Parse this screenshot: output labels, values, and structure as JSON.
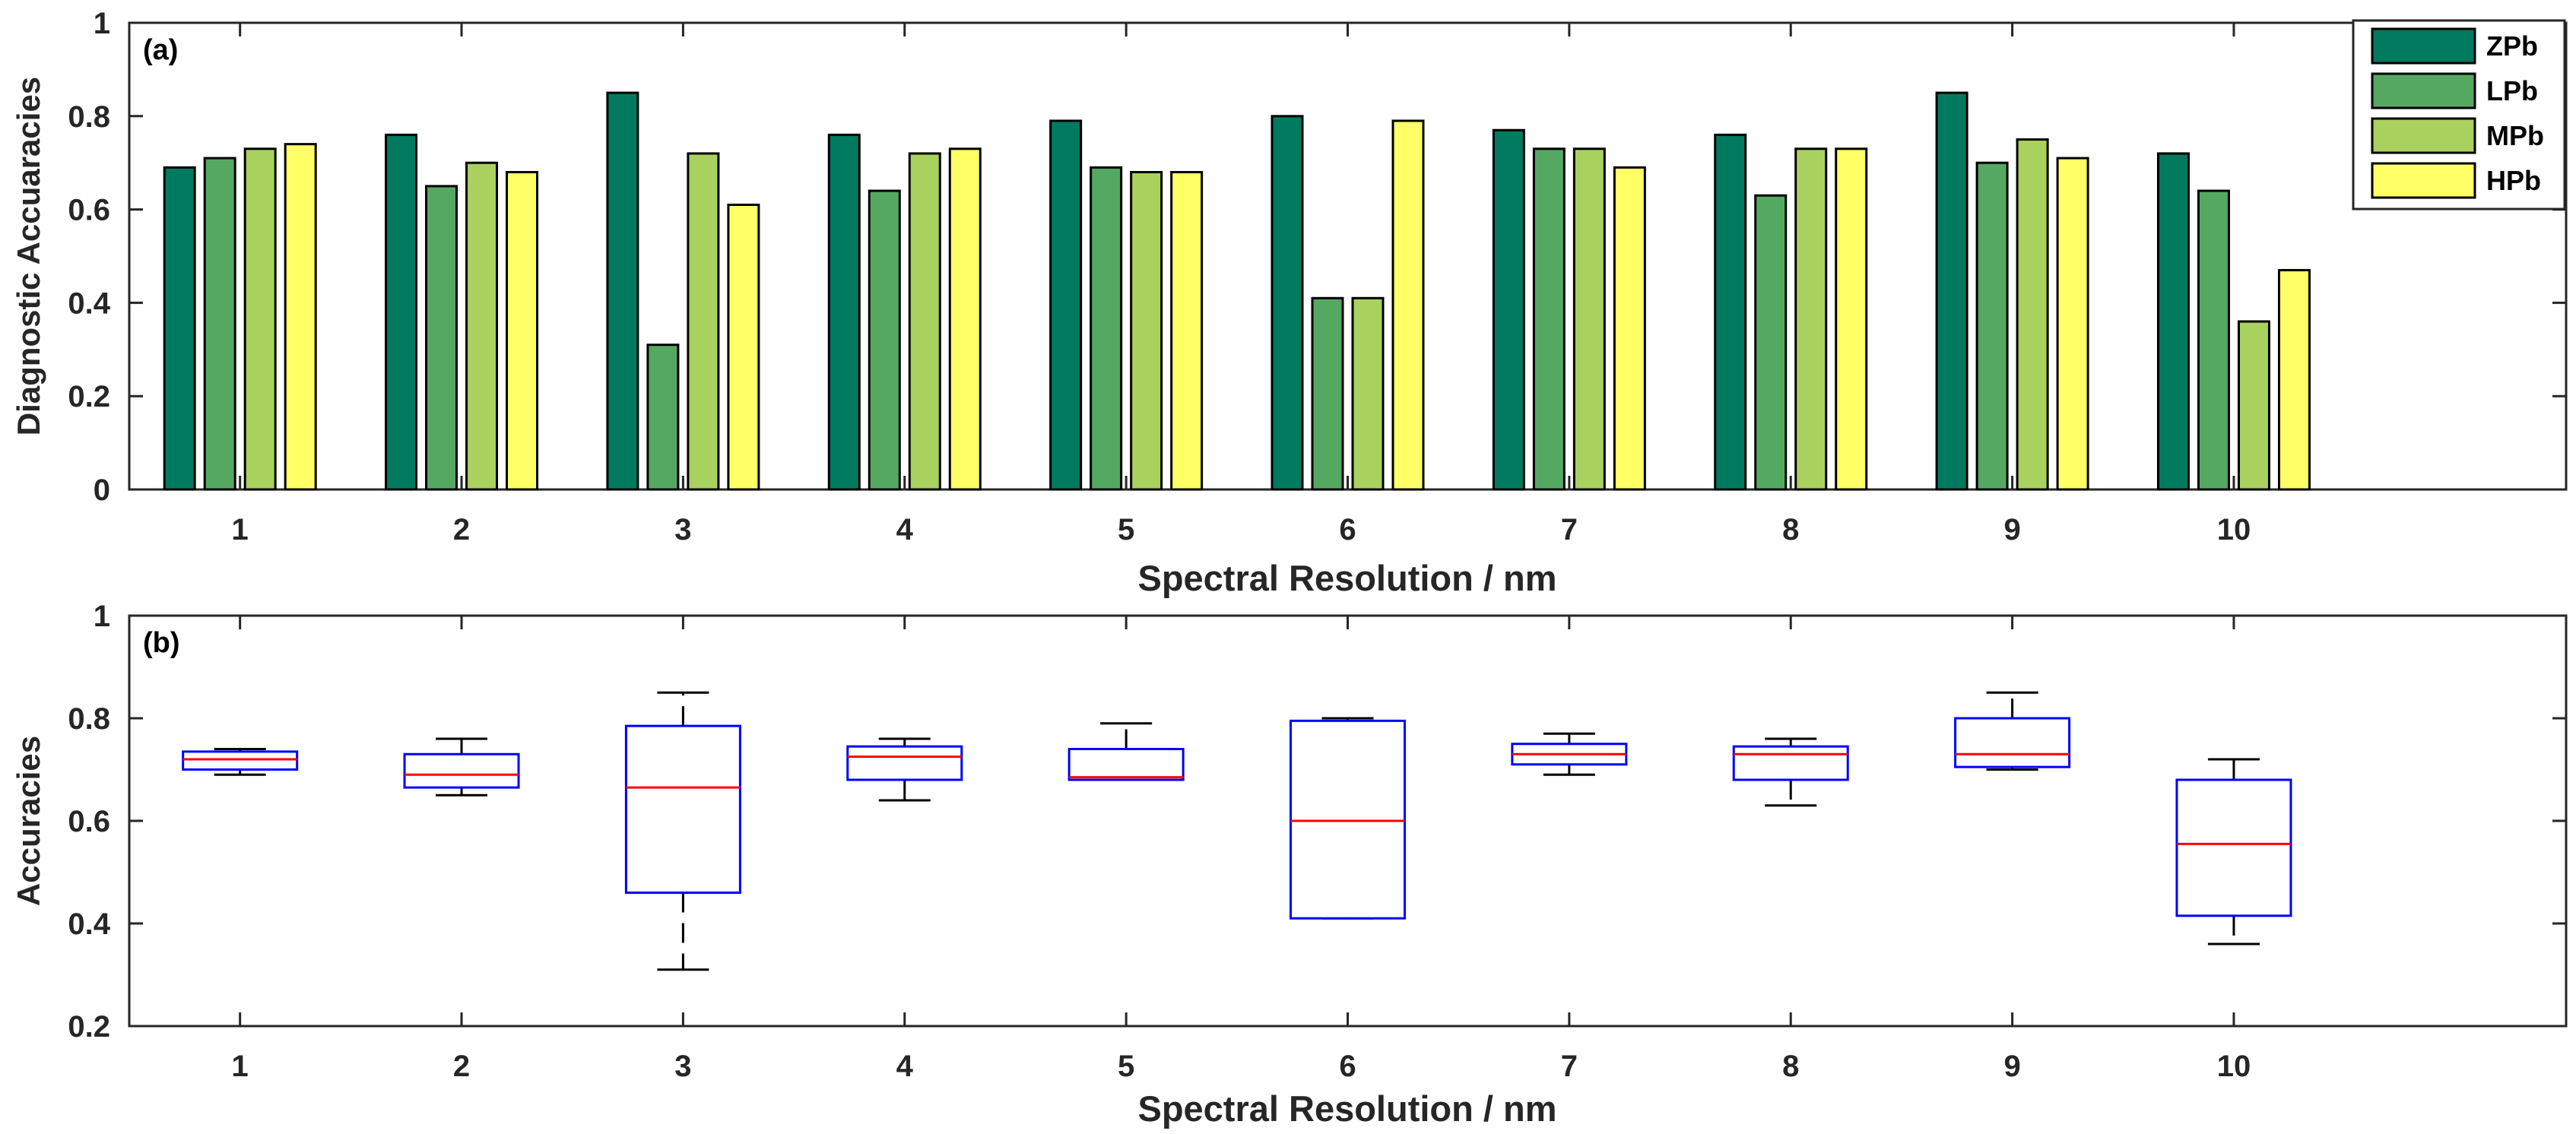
{
  "chart_data": [
    {
      "type": "bar",
      "panel_label": "(a)",
      "categories": [
        "1",
        "2",
        "3",
        "4",
        "5",
        "6",
        "7",
        "8",
        "9",
        "10"
      ],
      "series": [
        {
          "name": "ZPb",
          "color": "#007a5e",
          "values": [
            0.69,
            0.76,
            0.85,
            0.76,
            0.79,
            0.8,
            0.77,
            0.76,
            0.85,
            0.72
          ]
        },
        {
          "name": "LPb",
          "color": "#55a862",
          "values": [
            0.71,
            0.65,
            0.31,
            0.64,
            0.69,
            0.41,
            0.73,
            0.63,
            0.7,
            0.64
          ]
        },
        {
          "name": "MPb",
          "color": "#a9d15e",
          "values": [
            0.73,
            0.7,
            0.72,
            0.72,
            0.68,
            0.41,
            0.73,
            0.73,
            0.75,
            0.36
          ]
        },
        {
          "name": "HPb",
          "color": "#ffff66",
          "values": [
            0.74,
            0.68,
            0.61,
            0.73,
            0.68,
            0.79,
            0.69,
            0.73,
            0.71,
            0.47
          ]
        }
      ],
      "xlabel": "Spectral Resolution / nm",
      "ylabel": "Diagnostic Accuaracies",
      "ylim": [
        0,
        1
      ],
      "yticks": [
        "0",
        "0.2",
        "0.4",
        "0.6",
        "0.8",
        "1"
      ],
      "xlim": [
        0.5,
        11.5
      ],
      "legend_position": "top-right"
    },
    {
      "type": "box",
      "panel_label": "(b)",
      "categories": [
        "1",
        "2",
        "3",
        "4",
        "5",
        "6",
        "7",
        "8",
        "9",
        "10"
      ],
      "boxes": [
        {
          "min": 0.69,
          "q1": 0.7,
          "median": 0.72,
          "q3": 0.735,
          "max": 0.74
        },
        {
          "min": 0.65,
          "q1": 0.665,
          "median": 0.69,
          "q3": 0.73,
          "max": 0.76
        },
        {
          "min": 0.31,
          "q1": 0.46,
          "median": 0.665,
          "q3": 0.785,
          "max": 0.85
        },
        {
          "min": 0.64,
          "q1": 0.68,
          "median": 0.725,
          "q3": 0.745,
          "max": 0.76
        },
        {
          "min": 0.68,
          "q1": 0.68,
          "median": 0.685,
          "q3": 0.74,
          "max": 0.79
        },
        {
          "min": 0.41,
          "q1": 0.41,
          "median": 0.6,
          "q3": 0.795,
          "max": 0.8
        },
        {
          "min": 0.69,
          "q1": 0.71,
          "median": 0.73,
          "q3": 0.75,
          "max": 0.77
        },
        {
          "min": 0.63,
          "q1": 0.68,
          "median": 0.73,
          "q3": 0.745,
          "max": 0.76
        },
        {
          "min": 0.7,
          "q1": 0.705,
          "median": 0.73,
          "q3": 0.8,
          "max": 0.85
        },
        {
          "min": 0.36,
          "q1": 0.415,
          "median": 0.555,
          "q3": 0.68,
          "max": 0.72
        }
      ],
      "box_color": "#0000ff",
      "median_color": "#ff0000",
      "whisker_color": "#000000",
      "xlabel": "Spectral Resolution / nm",
      "ylabel": "Accuracies",
      "ylim": [
        0.2,
        1
      ],
      "yticks": [
        "0.2",
        "0.4",
        "0.6",
        "0.8",
        "1"
      ],
      "xlim": [
        0.5,
        11.5
      ]
    }
  ]
}
